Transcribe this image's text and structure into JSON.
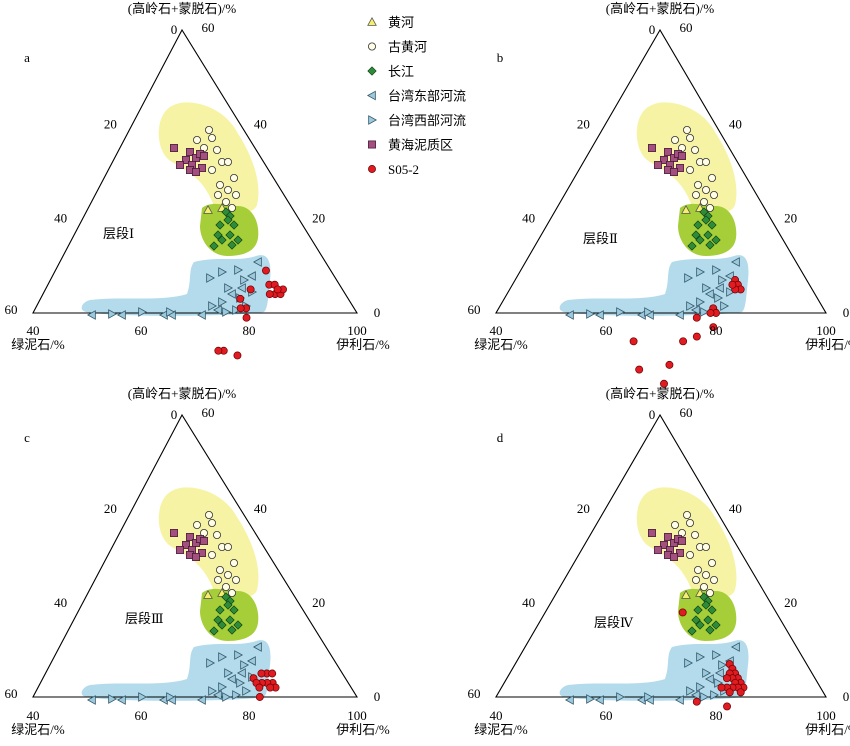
{
  "figure": {
    "legend": [
      {
        "label": "黄河",
        "marker": "triangle-up",
        "fill": "#f5ef6b"
      },
      {
        "label": "古黄河",
        "marker": "circle",
        "fill": "#fbf8b4"
      },
      {
        "label": "长江",
        "marker": "diamond",
        "fill": "#2e8b3a"
      },
      {
        "label": "台湾东部河流",
        "marker": "triangle-left",
        "fill": "#9cc9dc"
      },
      {
        "label": "台湾西部河流",
        "marker": "triangle-right",
        "fill": "#9cc9dc"
      },
      {
        "label": "黄海泥质区",
        "marker": "square",
        "fill": "#a4507f"
      },
      {
        "label": "S05-2",
        "marker": "circle-filled",
        "fill": "#e01b22"
      }
    ],
    "colors": {
      "yellow_field": "#f6f4a4",
      "green_field": "#a6ce39",
      "blue_field": "#b3dbec",
      "red_point": "#e01b22",
      "purple_point": "#a4507f"
    }
  },
  "chart_data": [
    {
      "type": "ternary",
      "panel": "a",
      "layer_label": "层段Ⅰ",
      "top_axis_label": "(高岭石+蒙脱石)/%",
      "left_axis_label": "绿泥石/%",
      "right_axis_label": "伊利石/%",
      "left_edge_ticks": [
        "0",
        "20",
        "40",
        "60"
      ],
      "right_edge_ticks": [
        "60",
        "40",
        "20",
        "0"
      ],
      "bottom_ticks": [
        "40",
        "60",
        "80",
        "100"
      ],
      "series": [
        {
          "name": "S05-2",
          "points_illite_chlorite": [
            [
              81,
              13
            ],
            [
              82,
              12
            ],
            [
              83,
              13
            ],
            [
              84,
              12
            ],
            [
              82,
              14
            ],
            [
              84,
              11
            ],
            [
              83,
              12
            ],
            [
              79,
              12
            ],
            [
              78,
              17
            ],
            [
              77,
              20
            ],
            [
              79,
              20
            ],
            [
              78,
              21
            ],
            [
              80,
              21
            ],
            [
              79,
              29
            ],
            [
              82,
              27
            ],
            [
              78,
              30
            ]
          ]
        }
      ]
    },
    {
      "type": "ternary",
      "panel": "b",
      "layer_label": "层段Ⅱ",
      "top_axis_label": "(高岭石+蒙脱石)/%",
      "left_axis_label": "绿泥石/%",
      "right_axis_label": "伊利石/%",
      "left_edge_ticks": [
        "0",
        "20",
        "40",
        "60"
      ],
      "right_edge_ticks": [
        "60",
        "40",
        "20",
        "0"
      ],
      "bottom_ticks": [
        "40",
        "60",
        "80",
        "100"
      ],
      "series": [
        {
          "name": "S05-2",
          "points_illite_chlorite": [
            [
              80,
              13
            ],
            [
              81,
              13
            ],
            [
              82,
              13
            ],
            [
              81,
              14
            ],
            [
              80,
              14
            ],
            [
              79,
              20
            ],
            [
              80,
              20
            ],
            [
              79,
              21
            ],
            [
              81,
              22
            ],
            [
              77,
              24
            ],
            [
              79,
              26
            ],
            [
              77,
              29
            ],
            [
              77,
              34
            ],
            [
              78,
              37
            ],
            [
              72,
              40
            ],
            [
              68,
              38
            ]
          ]
        }
      ]
    },
    {
      "type": "ternary",
      "panel": "c",
      "layer_label": "层段Ⅲ",
      "top_axis_label": "(高岭石+蒙脱石)/%",
      "left_axis_label": "绿泥石/%",
      "right_axis_label": "伊利石/%",
      "left_edge_ticks": [
        "0",
        "20",
        "40",
        "60"
      ],
      "right_edge_ticks": [
        "60",
        "40",
        "20",
        "0"
      ],
      "bottom_ticks": [
        "40",
        "60",
        "80",
        "100"
      ],
      "series": [
        {
          "name": "S05-2",
          "points_illite_chlorite": [
            [
              81,
              14
            ],
            [
              82,
              13
            ],
            [
              83,
              14
            ],
            [
              84,
              14
            ],
            [
              82,
              15
            ],
            [
              83,
              15
            ],
            [
              80,
              15
            ],
            [
              81,
              16
            ],
            [
              79,
              17
            ],
            [
              80,
              17
            ],
            [
              81,
              17
            ],
            [
              82,
              18
            ]
          ]
        }
      ]
    },
    {
      "type": "ternary",
      "panel": "d",
      "layer_label": "层段Ⅳ",
      "top_axis_label": "(高岭石+蒙脱石)/%",
      "left_axis_label": "绿泥石/%",
      "right_axis_label": "伊利石/%",
      "left_edge_ticks": [
        "0",
        "20",
        "40",
        "60"
      ],
      "right_edge_ticks": [
        "60",
        "40",
        "20",
        "0"
      ],
      "bottom_ticks": [
        "40",
        "60",
        "80",
        "100"
      ],
      "series": [
        {
          "name": "S05-2",
          "points_illite_chlorite": [
            [
              79,
              14
            ],
            [
              80,
              14
            ],
            [
              81,
              14
            ],
            [
              82,
              14
            ],
            [
              83,
              14
            ],
            [
              84,
              14
            ],
            [
              80,
              15
            ],
            [
              81,
              15
            ],
            [
              82,
              15
            ],
            [
              83,
              15
            ],
            [
              84,
              15
            ],
            [
              80,
              16
            ],
            [
              82,
              16
            ],
            [
              81,
              17
            ],
            [
              82,
              17
            ],
            [
              80,
              18
            ],
            [
              83,
              19
            ],
            [
              77,
              24
            ],
            [
              65,
              17
            ]
          ]
        }
      ]
    }
  ]
}
